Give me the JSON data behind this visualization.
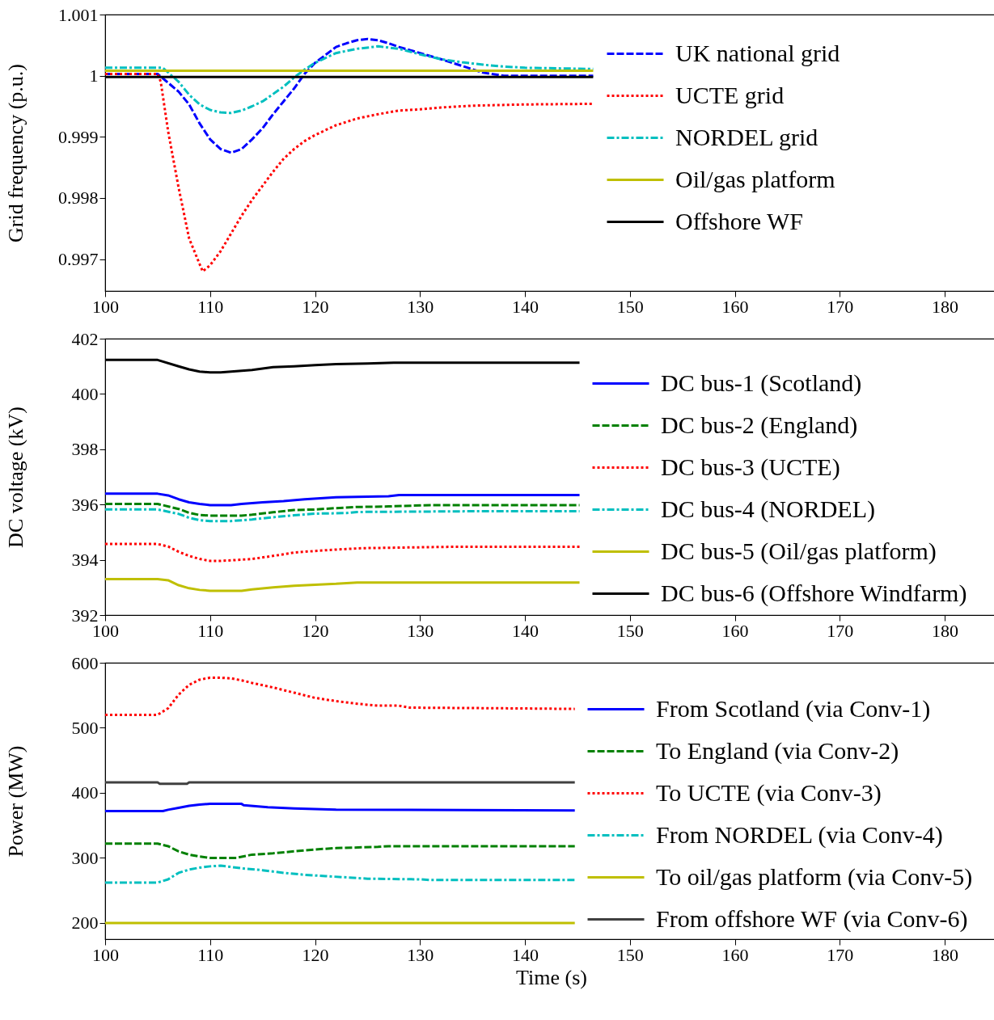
{
  "chart_data": [
    {
      "type": "line",
      "ylabel": "Grid frequency (p.u.)",
      "xlim": [
        100,
        185
      ],
      "xticks": [
        100,
        110,
        120,
        130,
        140,
        150,
        160,
        170,
        180
      ],
      "ylim": [
        0.99648,
        1.001
      ],
      "yticks": [
        0.997,
        0.998,
        0.999,
        1,
        1.001
      ],
      "grid": false,
      "legend": "top right",
      "series": [
        {
          "name": "UK national grid",
          "color": "#0000ff",
          "line_style": "dashed",
          "x": [
            100,
            105,
            107,
            108,
            109,
            110,
            111,
            112,
            113,
            114,
            115,
            116,
            117,
            118,
            119,
            120,
            121,
            122,
            123,
            124,
            125,
            126,
            127,
            128,
            130,
            132,
            134,
            136,
            138,
            140,
            146.5
          ],
          "values": [
            1.00003,
            1.00003,
            0.99974,
            0.99953,
            0.99922,
            0.99896,
            0.9988,
            0.99874,
            0.9988,
            0.99896,
            0.99914,
            0.99937,
            0.99958,
            0.99979,
            1.00003,
            1.00021,
            1.00034,
            1.00047,
            1.00053,
            1.00058,
            1.0006,
            1.00058,
            1.00053,
            1.00047,
            1.00037,
            1.00027,
            1.00016,
            1.00005,
            1.0,
            1.0,
            1.0
          ]
        },
        {
          "name": "UCTE grid",
          "color": "#ff0000",
          "line_style": "dotted",
          "x": [
            100,
            105,
            105.3,
            106,
            107,
            108,
            109,
            109.3,
            110,
            111,
            112,
            113,
            114,
            115,
            116,
            117,
            118,
            119,
            120,
            122,
            124,
            126,
            128,
            130,
            132,
            135,
            140,
            146.5
          ],
          "values": [
            1.00003,
            1.00003,
            0.9999,
            0.99909,
            0.99817,
            0.99734,
            0.99692,
            0.9968,
            0.9969,
            0.99713,
            0.99742,
            0.99771,
            0.99797,
            0.9982,
            0.99843,
            0.99864,
            0.9988,
            0.99893,
            0.99903,
            0.99919,
            0.9993,
            0.99937,
            0.99943,
            0.99945,
            0.99948,
            0.99951,
            0.99953,
            0.99954
          ]
        },
        {
          "name": "NORDEL grid",
          "color": "#00bfbf",
          "line_style": "dashdot",
          "x": [
            100,
            105.5,
            107,
            108,
            109,
            110,
            111,
            112,
            113,
            114,
            115,
            116,
            117,
            118,
            119,
            120,
            122,
            124,
            126,
            128,
            130,
            132,
            134,
            136,
            138,
            140,
            146.5
          ],
          "values": [
            1.00013,
            1.00013,
            0.9999,
            0.99969,
            0.99953,
            0.99944,
            0.9994,
            0.99939,
            0.99943,
            0.9995,
            0.99958,
            0.9997,
            0.99982,
            0.99997,
            1.0001,
            1.00021,
            1.00037,
            1.00044,
            1.00048,
            1.00044,
            1.00035,
            1.00027,
            1.00022,
            1.00018,
            1.00015,
            1.00013,
            1.00011
          ]
        },
        {
          "name": "Oil/gas platform",
          "color": "#bfbf00",
          "line_style": "solid",
          "x": [
            100,
            146.5
          ],
          "values": [
            1.00008,
            1.00008
          ]
        },
        {
          "name": "Offshore WF",
          "color": "#000000",
          "line_style": "solid",
          "x": [
            100,
            146.5
          ],
          "values": [
            0.99998,
            0.99998
          ]
        }
      ]
    },
    {
      "type": "line",
      "ylabel": "DC voltage (kV)",
      "xlim": [
        100,
        185
      ],
      "xticks": [
        100,
        110,
        120,
        130,
        140,
        150,
        160,
        170,
        180
      ],
      "ylim": [
        392,
        402
      ],
      "yticks": [
        392,
        394,
        396,
        398,
        400,
        402
      ],
      "grid": false,
      "legend": "right",
      "series": [
        {
          "name": "DC bus-1 (Scotland)",
          "color": "#0000ff",
          "line_style": "solid",
          "x": [
            100,
            105,
            106,
            107,
            108,
            109,
            110,
            112,
            113,
            115,
            117,
            119,
            122,
            125,
            127,
            128,
            145.2
          ],
          "values": [
            396.39,
            396.39,
            396.33,
            396.19,
            396.08,
            396.02,
            395.98,
            395.98,
            396.02,
            396.08,
            396.12,
            396.19,
            396.26,
            396.28,
            396.3,
            396.34,
            396.34
          ]
        },
        {
          "name": "DC bus-2 (England)",
          "color": "#008000",
          "line_style": "dashed",
          "x": [
            100,
            105,
            107,
            108,
            109,
            110,
            113,
            114,
            116,
            118,
            120,
            122,
            124,
            127,
            131,
            145.2
          ],
          "values": [
            396.02,
            396.02,
            395.84,
            395.7,
            395.62,
            395.6,
            395.6,
            395.63,
            395.72,
            395.8,
            395.82,
            395.87,
            395.91,
            395.93,
            395.98,
            395.98
          ]
        },
        {
          "name": "DC bus-3 (UCTE)",
          "color": "#ff0000",
          "line_style": "dotted",
          "x": [
            100,
            105,
            106,
            107,
            108,
            109,
            110,
            111,
            112,
            114,
            116,
            118,
            120,
            122,
            124.5,
            133,
            145.2
          ],
          "values": [
            394.57,
            394.57,
            394.48,
            394.29,
            394.14,
            394.03,
            393.96,
            393.96,
            393.98,
            394.03,
            394.14,
            394.26,
            394.32,
            394.37,
            394.42,
            394.47,
            394.47
          ]
        },
        {
          "name": "DC bus-4 (NORDEL)",
          "color": "#00bfbf",
          "line_style": "dashdot",
          "x": [
            100,
            105,
            107,
            108,
            109,
            110,
            112,
            114,
            116,
            118,
            120,
            123,
            124,
            137,
            145.2
          ],
          "values": [
            395.82,
            395.82,
            395.66,
            395.52,
            395.43,
            395.4,
            395.4,
            395.46,
            395.54,
            395.61,
            395.67,
            395.69,
            395.73,
            395.76,
            395.76
          ]
        },
        {
          "name": "DC bus-5 (Oil/gas platform)",
          "color": "#bfbf00",
          "line_style": "solid",
          "x": [
            100,
            105,
            106,
            107,
            108,
            109,
            110,
            113,
            114,
            116,
            118,
            120,
            122,
            124,
            145.2
          ],
          "values": [
            393.3,
            393.3,
            393.26,
            393.08,
            392.97,
            392.91,
            392.88,
            392.88,
            392.93,
            393.0,
            393.06,
            393.1,
            393.13,
            393.18,
            393.18
          ]
        },
        {
          "name": "DC bus-6 (Offshore Windfarm)",
          "color": "#000000",
          "line_style": "solid",
          "x": [
            100,
            105,
            107,
            108,
            109,
            110,
            111,
            112,
            114,
            116,
            118,
            120,
            122,
            125,
            127.5,
            145.2
          ],
          "values": [
            401.23,
            401.23,
            401.0,
            400.89,
            400.81,
            400.78,
            400.78,
            400.81,
            400.87,
            400.97,
            401.0,
            401.04,
            401.08,
            401.1,
            401.13,
            401.13
          ]
        }
      ]
    },
    {
      "type": "line",
      "xlabel": "Time (s)",
      "ylabel": "Power (MW)",
      "xlim": [
        100,
        185
      ],
      "xticks": [
        100,
        110,
        120,
        130,
        140,
        150,
        160,
        170,
        180
      ],
      "ylim": [
        175,
        600
      ],
      "yticks": [
        200,
        300,
        400,
        500,
        600
      ],
      "grid": false,
      "legend": "right",
      "series": [
        {
          "name": "From Scotland (via Conv-1)",
          "color": "#0000ff",
          "line_style": "solid",
          "x": [
            100,
            105.5,
            106,
            107,
            108,
            109,
            110,
            113,
            113.2,
            115.5,
            118,
            122,
            144.75
          ],
          "values": [
            372,
            372,
            374,
            377,
            380,
            382,
            383,
            383,
            381,
            378,
            376,
            374,
            373
          ]
        },
        {
          "name": "To England (via Conv-2)",
          "color": "#008000",
          "line_style": "dashed",
          "x": [
            100,
            105,
            106,
            107,
            108,
            109,
            110,
            112.5,
            114,
            116,
            118,
            120,
            122,
            126,
            127,
            144.75
          ],
          "values": [
            322,
            322,
            318,
            310,
            305,
            302,
            300,
            300,
            305,
            307,
            310,
            313,
            315,
            317,
            318,
            318
          ]
        },
        {
          "name": "To UCTE (via Conv-3)",
          "color": "#ff0000",
          "line_style": "dotted",
          "x": [
            100,
            105,
            106,
            107,
            108,
            109,
            110,
            111,
            112,
            113,
            114,
            116,
            118,
            120,
            122,
            124,
            126,
            128,
            129,
            138,
            144.75
          ],
          "values": [
            520,
            520,
            530,
            551,
            566,
            574,
            577,
            577,
            576,
            573,
            569,
            562,
            554,
            546,
            541,
            537,
            534,
            534,
            531,
            530,
            529
          ]
        },
        {
          "name": "From NORDEL (via Conv-4)",
          "color": "#00bfbf",
          "line_style": "dashdot",
          "x": [
            100,
            105,
            106,
            107,
            108,
            109,
            110,
            111,
            112,
            113,
            115,
            117,
            119,
            121,
            123,
            125,
            130,
            131,
            144.75
          ],
          "values": [
            262,
            262,
            267,
            277,
            282,
            285,
            287,
            288,
            286,
            284,
            281,
            277,
            274,
            272,
            270,
            268,
            267,
            266,
            266
          ]
        },
        {
          "name": "To oil/gas platform (via Conv-5)",
          "color": "#bfbf00",
          "line_style": "solid",
          "x": [
            100,
            144.75
          ],
          "values": [
            200,
            200
          ]
        },
        {
          "name": "From offshore WF (via Conv-6)",
          "color": "#404040",
          "line_style": "solid",
          "x": [
            100,
            105,
            105.2,
            107.8,
            108,
            144.75
          ],
          "values": [
            416,
            416,
            414,
            414,
            416,
            416
          ]
        }
      ]
    }
  ]
}
